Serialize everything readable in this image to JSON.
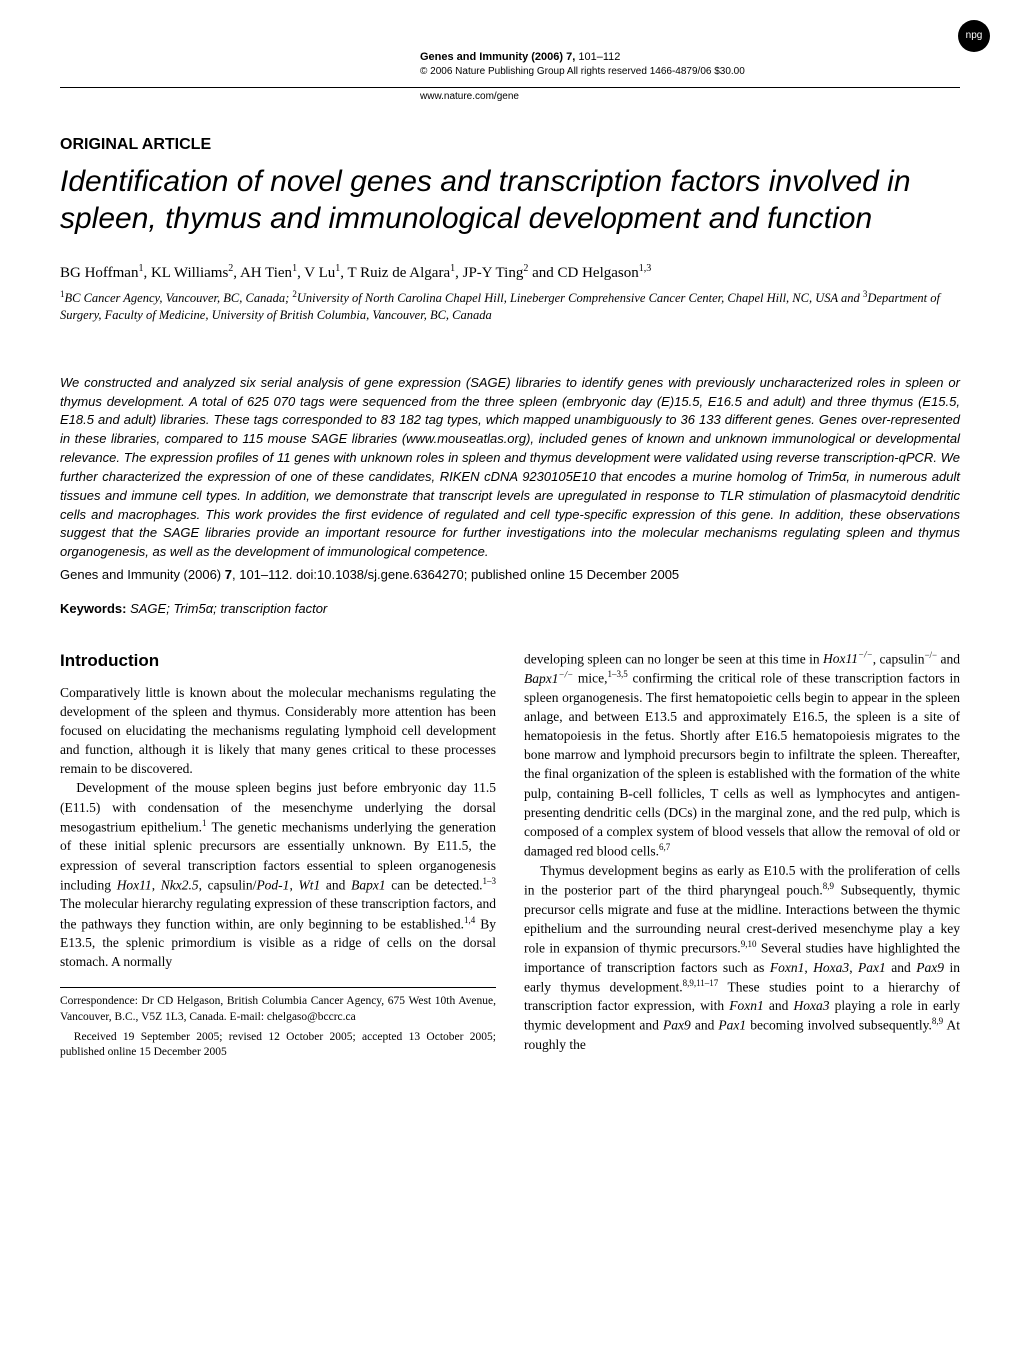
{
  "logo_text": "npg",
  "header": {
    "journal": "Genes and Immunity",
    "year": "(2006)",
    "volume": "7,",
    "pages": "101–112",
    "copyright": "© 2006 Nature Publishing Group   All rights reserved 1466-4879/06 $30.00",
    "website": "www.nature.com/gene"
  },
  "article_type": "ORIGINAL ARTICLE",
  "title": "Identification of novel genes and transcription factors involved in spleen, thymus and immunological development and function",
  "authors_html": "BG Hoffman<sup>1</sup>, KL Williams<sup>2</sup>, AH Tien<sup>1</sup>, V Lu<sup>1</sup>, T Ruiz de Algara<sup>1</sup>, JP-Y Ting<sup>2</sup> and CD Helgason<sup>1,3</sup>",
  "affiliations_html": "<sup>1</sup>BC Cancer Agency, Vancouver, BC, Canada; <sup>2</sup>University of North Carolina Chapel Hill, Lineberger Comprehensive Cancer Center, Chapel Hill, NC, USA and <sup>3</sup>Department of Surgery, Faculty of Medicine, University of British Columbia, Vancouver, BC, Canada",
  "abstract": "We constructed and analyzed six serial analysis of gene expression (SAGE) libraries to identify genes with previously uncharacterized roles in spleen or thymus development. A total of 625 070 tags were sequenced from the three spleen (embryonic day (E)15.5, E16.5 and adult) and three thymus (E15.5, E18.5 and adult) libraries. These tags corresponded to 83 182 tag types, which mapped unambiguously to 36 133 different genes. Genes over-represented in these libraries, compared to 115 mouse SAGE libraries (www.mouseatlas.org), included genes of known and unknown immunological or developmental relevance. The expression profiles of 11 genes with unknown roles in spleen and thymus development were validated using reverse transcription-qPCR. We further characterized the expression of one of these candidates, RIKEN cDNA 9230105E10 that encodes a murine homolog of Trim5α, in numerous adult tissues and immune cell types. In addition, we demonstrate that transcript levels are upregulated in response to TLR stimulation of plasmacytoid dendritic cells and macrophages. This work provides the first evidence of regulated and cell type-specific expression of this gene. In addition, these observations suggest that the SAGE libraries provide an important resource for further investigations into the molecular mechanisms regulating spleen and thymus organogenesis, as well as the development of immunological competence.",
  "citation": {
    "text1": "Genes and Immunity (2006) ",
    "vol": "7",
    "text2": ", 101–112. doi:10.1038/sj.gene.6364270; published online 15 December 2005"
  },
  "keywords_label": "Keywords:",
  "keywords": "SAGE; Trim5α; transcription factor",
  "intro_heading": "Introduction",
  "intro_p1": "Comparatively little is known about the molecular mechanisms regulating the development of the spleen and thymus. Considerably more attention has been focused on elucidating the mechanisms regulating lymphoid cell development and function, although it is likely that many genes critical to these processes remain to be discovered.",
  "intro_p2_html": "Development of the mouse spleen begins just before embryonic day 11.5 (E11.5) with condensation of the mesenchyme underlying the dorsal mesogastrium epithelium.<sup>1</sup> The genetic mechanisms underlying the generation of these initial splenic precursors are essentially unknown. By E11.5, the expression of several transcription factors essential to spleen organogenesis including <span class=\"italic\">Hox11</span>, <span class=\"italic\">Nkx2.5</span>, capsulin/<span class=\"italic\">Pod-1</span>, <span class=\"italic\">Wt1</span> and <span class=\"italic\">Bapx1</span> can be detected.<sup>1–3</sup> The molecular hierarchy regulating expression of these transcription factors, and the pathways they function within, are only beginning to be established.<sup>1,4</sup> By E13.5, the splenic primordium is visible as a ridge of cells on the dorsal stomach. A normally",
  "col2_p1_html": "developing spleen can no longer be seen at this time in <span class=\"italic\">Hox11<sup>−/−</sup></span>, capsulin<sup>−/−</sup> and <span class=\"italic\">Bapx1<sup>−/−</sup></span> mice,<sup>1–3,5</sup> confirming the critical role of these transcription factors in spleen organogenesis. The first hematopoietic cells begin to appear in the spleen anlage, and between E13.5 and approximately E16.5, the spleen is a site of hematopoiesis in the fetus. Shortly after E16.5 hematopoiesis migrates to the bone marrow and lymphoid precursors begin to infiltrate the spleen. Thereafter, the final organization of the spleen is established with the formation of the white pulp, containing B-cell follicles, T cells as well as lymphocytes and antigen-presenting dendritic cells (DCs) in the marginal zone, and the red pulp, which is composed of a complex system of blood vessels that allow the removal of old or damaged red blood cells.<sup>6,7</sup>",
  "col2_p2_html": "Thymus development begins as early as E10.5 with the proliferation of cells in the posterior part of the third pharyngeal pouch.<sup>8,9</sup> Subsequently, thymic precursor cells migrate and fuse at the midline. Interactions between the thymic epithelium and the surrounding neural crest-derived mesenchyme play a key role in expansion of thymic precursors.<sup>9,10</sup> Several studies have highlighted the importance of transcription factors such as <span class=\"italic\">Foxn1</span>, <span class=\"italic\">Hoxa3</span>, <span class=\"italic\">Pax1</span> and <span class=\"italic\">Pax9</span> in early thymus development.<sup>8,9,11–17</sup> These studies point to a hierarchy of transcription factor expression, with <span class=\"italic\">Foxn1</span> and <span class=\"italic\">Hoxa3</span> playing a role in early thymic development and <span class=\"italic\">Pax9</span> and <span class=\"italic\">Pax1</span> becoming involved subsequently.<sup>8,9</sup> At roughly the",
  "correspondence": "Correspondence: Dr CD Helgason, British Columbia Cancer Agency, 675 West 10th Avenue, Vancouver, B.C., V5Z 1L3, Canada. E-mail: chelgaso@bccrc.ca",
  "received": "Received 19 September 2005; revised 12 October 2005; accepted 13 October 2005; published online 15 December 2005"
}
